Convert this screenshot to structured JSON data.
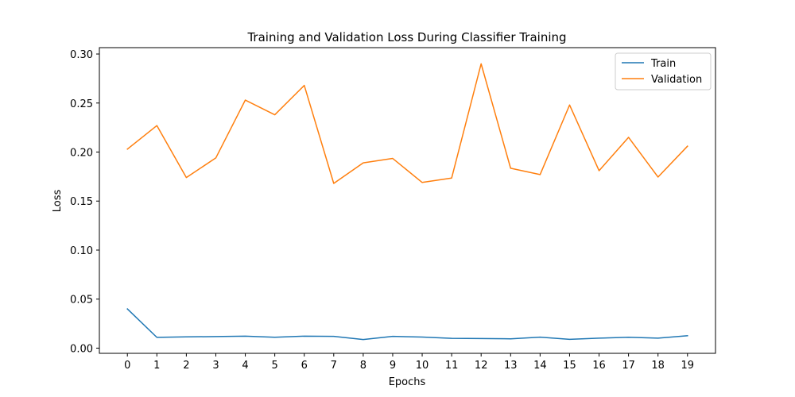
{
  "chart_data": {
    "type": "line",
    "title": "Training and Validation Loss During Classifier Training",
    "xlabel": "Epochs",
    "ylabel": "Loss",
    "x": [
      0,
      1,
      2,
      3,
      4,
      5,
      6,
      7,
      8,
      9,
      10,
      11,
      12,
      13,
      14,
      15,
      16,
      17,
      18,
      19
    ],
    "xlim": [
      -0.95,
      19.95
    ],
    "ylim": [
      -0.0053,
      0.3065
    ],
    "yticks": [
      "0.00",
      "0.05",
      "0.10",
      "0.15",
      "0.20",
      "0.25",
      "0.30"
    ],
    "ytick_values": [
      0,
      0.05,
      0.1,
      0.15,
      0.2,
      0.25,
      0.3
    ],
    "legend_position": "top-right",
    "grid": false,
    "series": [
      {
        "name": "Train",
        "color": "#1f77b4",
        "values": [
          0.04,
          0.011,
          0.0115,
          0.0118,
          0.0122,
          0.0111,
          0.0122,
          0.012,
          0.0088,
          0.012,
          0.0113,
          0.01,
          0.0098,
          0.0095,
          0.0112,
          0.009,
          0.0102,
          0.0111,
          0.0102,
          0.0127
        ]
      },
      {
        "name": "Validation",
        "color": "#ff7f0e",
        "values": [
          0.203,
          0.227,
          0.174,
          0.194,
          0.253,
          0.238,
          0.268,
          0.168,
          0.189,
          0.1935,
          0.169,
          0.1735,
          0.29,
          0.1835,
          0.177,
          0.248,
          0.181,
          0.215,
          0.1745,
          0.206
        ]
      }
    ]
  }
}
